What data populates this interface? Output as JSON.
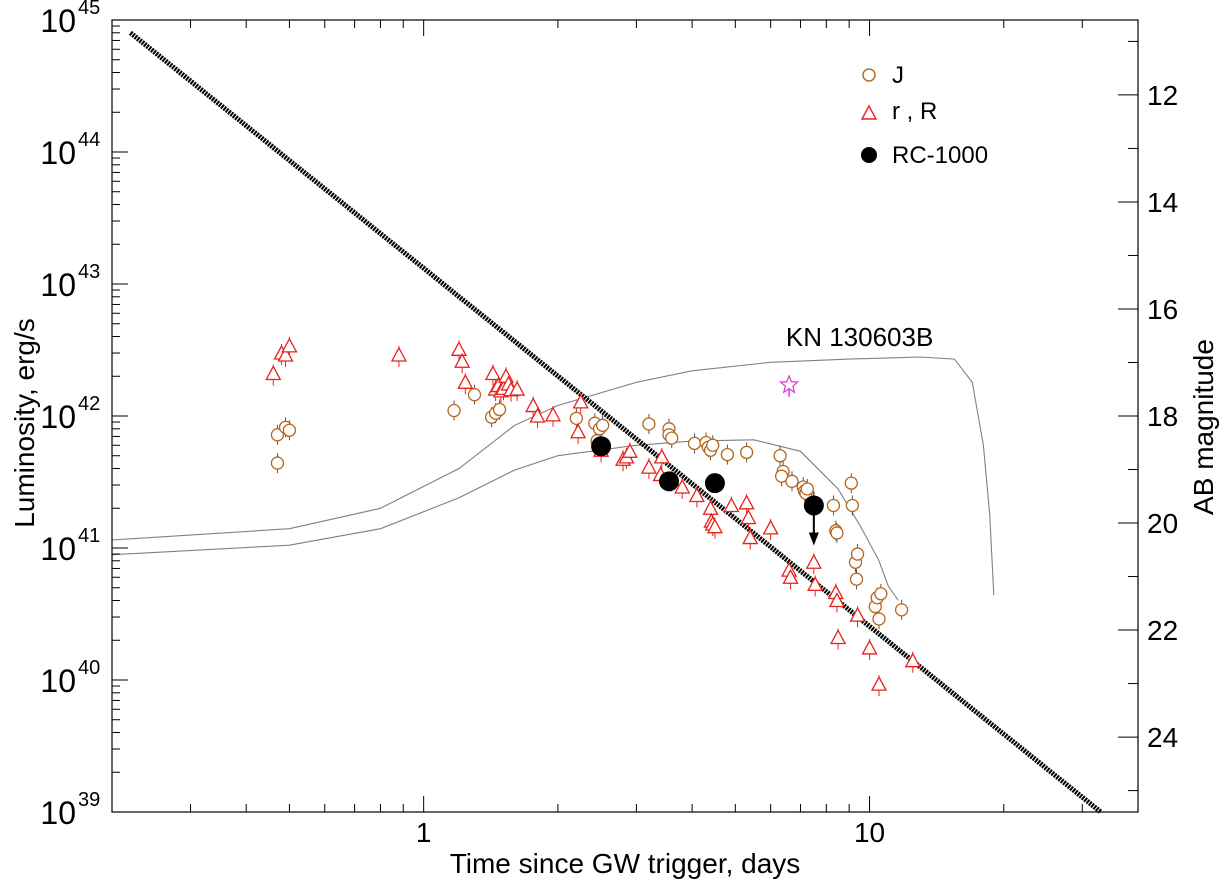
{
  "chart_data": {
    "type": "scatter",
    "xlabel": "Time since GW trigger, days",
    "ylabel": "Luminosity, erg/s",
    "y2label": "AB magnitude",
    "xscale": "log",
    "yscale": "log",
    "xlim": [
      0.2,
      40
    ],
    "ylim": [
      1e+39,
      1e+45
    ],
    "y2lim": [
      10.6,
      25.4
    ],
    "x_ticks": [
      {
        "value": 1,
        "label": "1"
      },
      {
        "value": 10,
        "label": "10"
      }
    ],
    "y_ticks": [
      {
        "value": 1e+39,
        "base": "10",
        "exp": "39"
      },
      {
        "value": 1e+40,
        "base": "10",
        "exp": "40"
      },
      {
        "value": 1e+41,
        "base": "10",
        "exp": "41"
      },
      {
        "value": 1e+42,
        "base": "10",
        "exp": "42"
      },
      {
        "value": 1e+43,
        "base": "10",
        "exp": "43"
      },
      {
        "value": 1e+44,
        "base": "10",
        "exp": "44"
      },
      {
        "value": 1e+45,
        "base": "10",
        "exp": "45"
      }
    ],
    "y2_ticks": [
      {
        "value": 12,
        "label": "12"
      },
      {
        "value": 14,
        "label": "14"
      },
      {
        "value": 16,
        "label": "16"
      },
      {
        "value": 18,
        "label": "18"
      },
      {
        "value": 20,
        "label": "20"
      },
      {
        "value": 22,
        "label": "22"
      },
      {
        "value": 24,
        "label": "24"
      }
    ],
    "legend_position": "top-right",
    "colors": {
      "J": "#b5651d",
      "rR": "#e8201a",
      "rc1000": "#000000",
      "model": "#808080",
      "star": "#e040e0",
      "powerlaw": "#000000"
    },
    "annotations": [
      {
        "text": "KN 130603B",
        "x": 9.5,
        "y": 3.4e+42
      }
    ],
    "series": [
      {
        "name": "J",
        "marker": "circle-open",
        "points": [
          [
            0.47,
            4.4e+41
          ],
          [
            0.47,
            7.2e+41
          ],
          [
            0.49,
            8.2e+41
          ],
          [
            0.5,
            7.8e+41
          ],
          [
            1.17,
            1.1e+42
          ],
          [
            1.3,
            1.45e+42
          ],
          [
            1.42,
            9.8e+41
          ],
          [
            1.45,
            1.05e+42
          ],
          [
            1.48,
            1.12e+42
          ],
          [
            2.2,
            9.6e+41
          ],
          [
            2.42,
            8.8e+41
          ],
          [
            2.48,
            8e+41
          ],
          [
            2.52,
            8.5e+41
          ],
          [
            2.45,
            6.5e+41
          ],
          [
            3.2,
            8.7e+41
          ],
          [
            3.55,
            8e+41
          ],
          [
            3.55,
            7.2e+41
          ],
          [
            3.6,
            6.8e+41
          ],
          [
            4.05,
            6.2e+41
          ],
          [
            4.3,
            6.3e+41
          ],
          [
            4.35,
            5.8e+41
          ],
          [
            4.4,
            5.5e+41
          ],
          [
            4.45,
            6e+41
          ],
          [
            4.8,
            5.1e+41
          ],
          [
            5.3,
            5.3e+41
          ],
          [
            6.3,
            5e+41
          ],
          [
            6.4,
            3.8e+41
          ],
          [
            6.35,
            3.5e+41
          ],
          [
            6.7,
            3.2e+41
          ],
          [
            7.1,
            2.9e+41
          ],
          [
            7.15,
            2.7e+41
          ],
          [
            7.2,
            2.6e+41
          ],
          [
            7.25,
            2.8e+41
          ],
          [
            8.3,
            2.1e+41
          ],
          [
            8.4,
            1.35e+41
          ],
          [
            8.45,
            1.3e+41
          ],
          [
            9.1,
            3.1e+41
          ],
          [
            9.15,
            2.1e+41
          ],
          [
            9.3,
            7.8e+40
          ],
          [
            9.35,
            5.8e+40
          ],
          [
            9.4,
            9e+40
          ],
          [
            10.3,
            3.6e+40
          ],
          [
            10.4,
            4.2e+40
          ],
          [
            10.6,
            4.5e+40
          ],
          [
            10.5,
            2.9e+40
          ],
          [
            11.8,
            3.4e+40
          ]
        ]
      },
      {
        "name": "r , R",
        "marker": "triangle-open",
        "points": [
          [
            0.46,
            2.1e+42
          ],
          [
            0.48,
            3e+42
          ],
          [
            0.49,
            2.9e+42
          ],
          [
            0.5,
            3.4e+42
          ],
          [
            0.88,
            2.9e+42
          ],
          [
            1.2,
            3.2e+42
          ],
          [
            1.22,
            2.6e+42
          ],
          [
            1.24,
            1.8e+42
          ],
          [
            1.43,
            2.1e+42
          ],
          [
            1.45,
            1.6e+42
          ],
          [
            1.47,
            1.7e+42
          ],
          [
            1.49,
            1.55e+42
          ],
          [
            1.51,
            1.62e+42
          ],
          [
            1.53,
            2e+42
          ],
          [
            1.55,
            1.75e+42
          ],
          [
            1.57,
            1.58e+42
          ],
          [
            1.62,
            1.6e+42
          ],
          [
            1.76,
            1.2e+42
          ],
          [
            1.8,
            1e+42
          ],
          [
            1.95,
            1.02e+42
          ],
          [
            2.25,
            1.28e+42
          ],
          [
            2.22,
            7.6e+41
          ],
          [
            2.5,
            5.5e+41
          ],
          [
            2.8,
            4.7e+41
          ],
          [
            2.85,
            4.9e+41
          ],
          [
            2.9,
            5.4e+41
          ],
          [
            3.2,
            4.1e+41
          ],
          [
            3.4,
            3.6e+41
          ],
          [
            3.42,
            4.9e+41
          ],
          [
            3.6,
            3.3e+41
          ],
          [
            3.8,
            2.9e+41
          ],
          [
            4.1,
            2.5e+41
          ],
          [
            4.4,
            2e+41
          ],
          [
            4.42,
            1.6e+41
          ],
          [
            4.45,
            1.52e+41
          ],
          [
            4.5,
            1.45e+41
          ],
          [
            4.9,
            2.1e+41
          ],
          [
            5.3,
            2.2e+41
          ],
          [
            5.35,
            1.7e+41
          ],
          [
            5.4,
            1.2e+41
          ],
          [
            6.0,
            1.42e+41
          ],
          [
            6.6,
            6.8e+40
          ],
          [
            6.65,
            6e+40
          ],
          [
            7.5,
            7.8e+40
          ],
          [
            7.55,
            5.3e+40
          ],
          [
            8.4,
            4.6e+40
          ],
          [
            8.45,
            4e+40
          ],
          [
            8.5,
            2.1e+40
          ],
          [
            9.4,
            3.1e+40
          ],
          [
            10.0,
            1.75e+40
          ],
          [
            10.5,
            9.3e+39
          ],
          [
            12.5,
            1.4e+40
          ]
        ]
      },
      {
        "name": "RC-1000",
        "marker": "circle-filled",
        "points": [
          [
            2.5,
            5.9e+41
          ],
          [
            3.55,
            3.2e+41
          ],
          [
            4.5,
            3.1e+41
          ],
          [
            7.5,
            2.1e+41
          ]
        ],
        "upper_limit_index": 3
      }
    ],
    "star_point": [
      6.6,
      1.72e+42
    ],
    "power_law_line": [
      [
        0.22,
        8e+44
      ],
      [
        33,
        1e+39
      ]
    ],
    "model_curves": [
      [
        [
          0.2,
          1.15e+41
        ],
        [
          0.5,
          1.4e+41
        ],
        [
          0.8,
          2e+41
        ],
        [
          1.2,
          4e+41
        ],
        [
          1.6,
          8.5e+41
        ],
        [
          2.0,
          1.2e+42
        ],
        [
          3.0,
          1.8e+42
        ],
        [
          4.0,
          2.2e+42
        ],
        [
          6.0,
          2.55e+42
        ],
        [
          9.0,
          2.7e+42
        ],
        [
          13.0,
          2.8e+42
        ],
        [
          15.5,
          2.7e+42
        ],
        [
          17.0,
          1.8e+42
        ],
        [
          18.0,
          6e+41
        ],
        [
          18.6,
          1.8e+41
        ],
        [
          19.0,
          4.4e+40
        ]
      ],
      [
        [
          0.2,
          8.9e+40
        ],
        [
          0.5,
          1.05e+41
        ],
        [
          0.8,
          1.4e+41
        ],
        [
          1.2,
          2.4e+41
        ],
        [
          1.6,
          3.9e+41
        ],
        [
          2.0,
          5e+41
        ],
        [
          3.0,
          6e+41
        ],
        [
          4.0,
          6.45e+41
        ],
        [
          5.5,
          6.6e+41
        ],
        [
          7.0,
          5.4e+41
        ],
        [
          8.5,
          2.8e+41
        ],
        [
          9.5,
          1.5e+41
        ],
        [
          10.5,
          8e+40
        ],
        [
          11.0,
          5.2e+40
        ],
        [
          11.6,
          4e+40
        ]
      ]
    ]
  }
}
